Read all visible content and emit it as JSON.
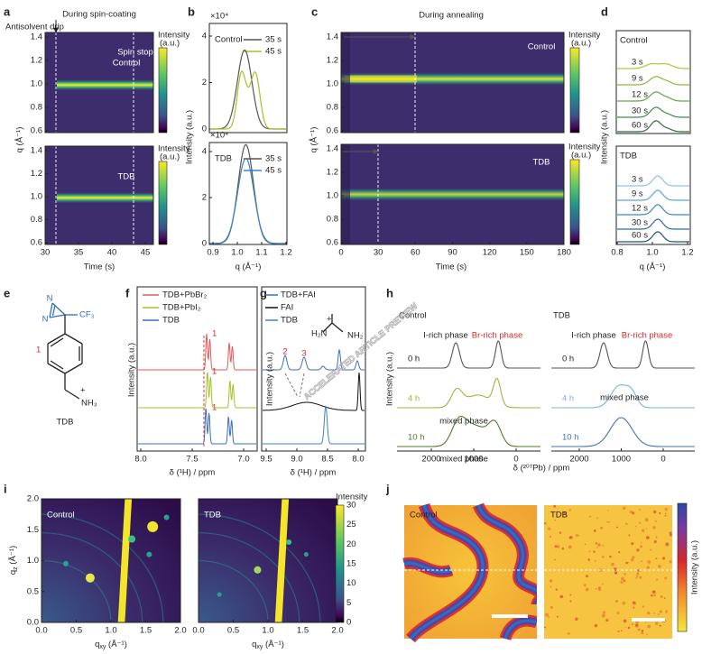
{
  "watermark": "ACCELERATED ARTICLE PREVIEW",
  "panels": {
    "a": {
      "label": "a",
      "title": "During spin-coating",
      "annotations": [
        "Antisolvent drip",
        "Spin stop"
      ],
      "maps": [
        "Control",
        "TDB"
      ],
      "y_label": "q (Å⁻¹)",
      "y_ticks": [
        "1.4",
        "1.2",
        "1.0",
        "0.8",
        "0.6"
      ],
      "x_ticks": [
        "30",
        "35",
        "40",
        "45"
      ],
      "x_label": "Time (s)",
      "colorbar_label": [
        "Intensity",
        "(a.u.)"
      ]
    },
    "b": {
      "label": "b",
      "multiplier": "×10⁴",
      "legend": [
        {
          "title": "Control",
          "items": [
            "35 s",
            "45 s"
          ]
        },
        {
          "title": "TDB",
          "items": [
            "35 s",
            "45 s"
          ]
        }
      ],
      "y_label": "Intensity (a.u.)",
      "y_ticks": [
        "4",
        "2",
        "0"
      ],
      "x_ticks": [
        "0.9",
        "1.0",
        "1.1",
        "1.2"
      ],
      "x_label": "q (Å⁻¹)"
    },
    "c": {
      "label": "c",
      "title": "During annealing",
      "maps": [
        "Control",
        "TDB"
      ],
      "y_label": "q (Å⁻¹)",
      "y_ticks": [
        "1.4",
        "1.2",
        "1.0",
        "0.8",
        "0.6"
      ],
      "x_ticks": [
        "0",
        "30",
        "60",
        "90",
        "120",
        "150",
        "180"
      ],
      "x_label": "Time (s)",
      "colorbar_label": [
        "Intensity",
        "(a.u.)"
      ]
    },
    "d": {
      "label": "d",
      "groups": [
        {
          "title": "Control",
          "times": [
            "3 s",
            "9 s",
            "12 s",
            "30 s",
            "60 s"
          ]
        },
        {
          "title": "TDB",
          "times": [
            "3 s",
            "9 s",
            "12 s",
            "30 s",
            "60 s"
          ]
        }
      ],
      "y_label": "Intensity (a.u.)",
      "x_ticks": [
        "0.8",
        "1.0",
        "1.2"
      ],
      "x_label": "q (Å⁻¹)"
    },
    "e": {
      "label": "e",
      "atoms": {
        "n": "N",
        "cf3": "CF₃",
        "charge": "+",
        "nh3": "NH₃"
      },
      "position": "1",
      "name": "TDB"
    },
    "f": {
      "label": "f",
      "legend": [
        "TDB+PbBr₂",
        "TDB+PbI₂",
        "TDB"
      ],
      "peak": "1",
      "y_label": "Intensity (a.u.)",
      "x_ticks": [
        "8.0",
        "7.5",
        "7.0"
      ],
      "x_label": "δ (¹H) / ppm"
    },
    "g": {
      "label": "g",
      "legend": [
        "TDB+FAI",
        "FAI",
        "TDB"
      ],
      "peaks": [
        "2",
        "3"
      ],
      "inset": {
        "left": "H₂N",
        "right": "NH₂",
        "charge": "+"
      },
      "y_label": "Intensity (a.u.)",
      "x_ticks": [
        "9.5",
        "9.0",
        "8.5",
        "8.0"
      ],
      "x_label": "δ (¹H) / ppm"
    },
    "h": {
      "label": "h",
      "samples": [
        {
          "title": "Control",
          "times": [
            "0 h",
            "4 h",
            "10 h"
          ]
        },
        {
          "title": "TDB",
          "times": [
            "0 h",
            "4 h",
            "10 h"
          ]
        }
      ],
      "phases": {
        "i_rich": "I-rich phase",
        "br_rich": "Br-rich phase",
        "mixed": "mixed phase"
      },
      "y_label": "Intensity (a.u.)",
      "x_ticks": [
        "2000",
        "1000",
        "0"
      ],
      "x_label": "δ (²⁰⁷Pb) / ppm"
    },
    "i": {
      "label": "i",
      "maps": [
        "Control",
        "TDB"
      ],
      "y_label": [
        "q",
        "z",
        " (Å⁻¹)"
      ],
      "x_label": [
        "q",
        "xy",
        " (Å⁻¹)"
      ],
      "ticks": [
        "0.0",
        "0.5",
        "1.0",
        "1.5",
        "2.0"
      ],
      "colorbar_label": "Intensity",
      "colorbar_ticks": [
        "30",
        "25",
        "20",
        "15",
        "10",
        "5",
        "0"
      ]
    },
    "j": {
      "label": "j",
      "maps": [
        "Control",
        "TDB"
      ],
      "colorbar_label": "Intensity (a.u.)"
    }
  }
}
